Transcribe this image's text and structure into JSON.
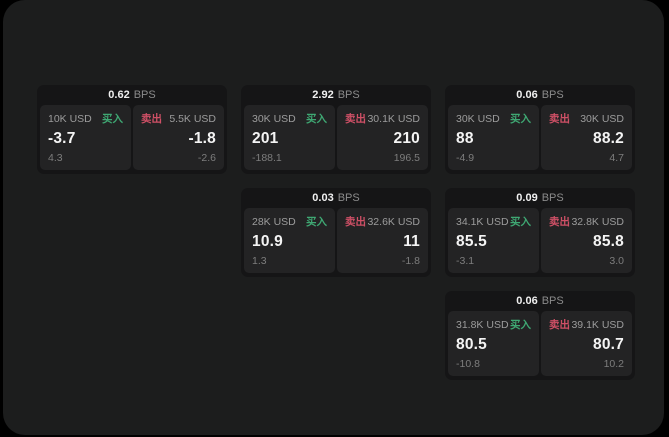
{
  "labels": {
    "bps_unit": "BPS",
    "buy": "买入",
    "sell": "卖出"
  },
  "colors": {
    "panel_bg": "#1c1d1d",
    "card_bg": "#151516",
    "tile_bg": "#232324",
    "buy_color": "#3fa873",
    "sell_color": "#cf5066"
  },
  "cards": [
    {
      "bps": "0.62",
      "buy": {
        "notional": "10K USD",
        "price": "-3.7",
        "delta": "4.3"
      },
      "sell": {
        "notional": "5.5K USD",
        "price": "-1.8",
        "delta": "-2.6"
      }
    },
    {
      "bps": "2.92",
      "buy": {
        "notional": "30K USD",
        "price": "201",
        "delta": "-188.1"
      },
      "sell": {
        "notional": "30.1K USD",
        "price": "210",
        "delta": "196.5"
      }
    },
    {
      "bps": "0.06",
      "buy": {
        "notional": "30K USD",
        "price": "88",
        "delta": "-4.9"
      },
      "sell": {
        "notional": "30K USD",
        "price": "88.2",
        "delta": "4.7"
      }
    },
    {
      "bps": "0.03",
      "buy": {
        "notional": "28K USD",
        "price": "10.9",
        "delta": "1.3"
      },
      "sell": {
        "notional": "32.6K USD",
        "price": "11",
        "delta": "-1.8"
      }
    },
    {
      "bps": "0.09",
      "buy": {
        "notional": "34.1K USD",
        "price": "85.5",
        "delta": "-3.1"
      },
      "sell": {
        "notional": "32.8K USD",
        "price": "85.8",
        "delta": "3.0"
      }
    },
    {
      "bps": "0.06",
      "buy": {
        "notional": "31.8K USD",
        "price": "80.5",
        "delta": "-10.8"
      },
      "sell": {
        "notional": "39.1K USD",
        "price": "80.7",
        "delta": "10.2"
      }
    }
  ]
}
